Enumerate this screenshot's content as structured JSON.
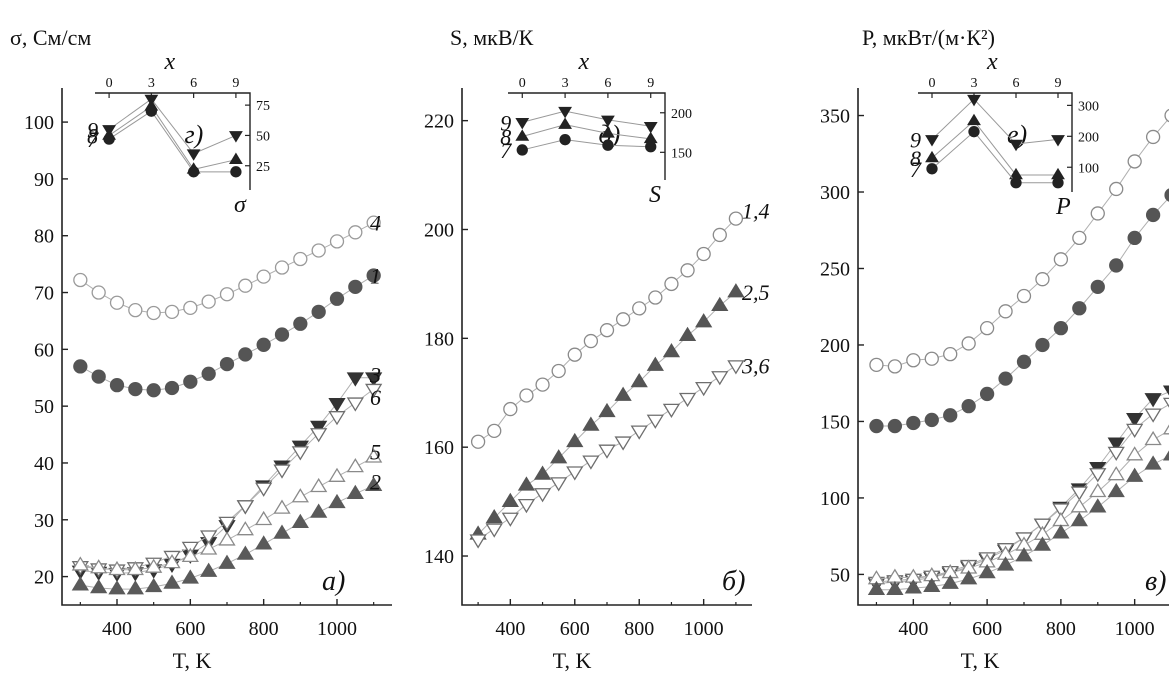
{
  "chart_data": [
    {
      "type": "scatter",
      "panel_label": "а)",
      "ylabel": "σ, См/см",
      "xlabel": "T, K",
      "xlim": [
        250,
        1150
      ],
      "ylim": [
        15,
        106
      ],
      "xticks": [
        400,
        600,
        800,
        1000
      ],
      "yticks": [
        20,
        30,
        40,
        50,
        60,
        70,
        80,
        90,
        100
      ],
      "series": [
        {
          "name": "4",
          "marker": "circle-open",
          "color": "#9a9a9a",
          "x": [
            300,
            350,
            400,
            450,
            500,
            550,
            600,
            650,
            700,
            750,
            800,
            850,
            900,
            950,
            1000,
            1050,
            1100
          ],
          "y": [
            72.2,
            70.0,
            68.2,
            66.9,
            66.4,
            66.6,
            67.3,
            68.4,
            69.7,
            71.2,
            72.8,
            74.4,
            75.9,
            77.4,
            79.0,
            80.6,
            82.3
          ]
        },
        {
          "name": "1",
          "marker": "circle-filled",
          "color": "#555555",
          "x": [
            300,
            350,
            400,
            450,
            500,
            550,
            600,
            650,
            700,
            750,
            800,
            850,
            900,
            950,
            1000,
            1050,
            1100
          ],
          "y": [
            57.0,
            55.2,
            53.7,
            53.0,
            52.8,
            53.2,
            54.3,
            55.7,
            57.4,
            59.1,
            60.8,
            62.6,
            64.5,
            66.6,
            68.9,
            71.0,
            73.0
          ]
        },
        {
          "name": "3",
          "marker": "tri-down-filled",
          "color": "#333333",
          "x": [
            300,
            350,
            400,
            450,
            500,
            550,
            600,
            650,
            700,
            750,
            800,
            850,
            900,
            950,
            1000,
            1050,
            1100
          ],
          "y": [
            21.0,
            20.8,
            20.6,
            20.7,
            21.2,
            22.2,
            23.8,
            26.0,
            29.0,
            32.5,
            36.0,
            39.5,
            43.0,
            46.5,
            50.5,
            55.0,
            55.0
          ]
        },
        {
          "name": "6",
          "marker": "tri-down-open",
          "color": "#6e6e6e",
          "x": [
            300,
            350,
            400,
            450,
            500,
            550,
            600,
            650,
            700,
            750,
            800,
            850,
            900,
            950,
            1000,
            1050,
            1100
          ],
          "y": [
            21.8,
            21.4,
            21.2,
            21.6,
            22.4,
            23.6,
            25.2,
            27.2,
            29.6,
            32.5,
            35.6,
            38.8,
            42.0,
            45.2,
            48.2,
            50.6,
            53.0
          ]
        },
        {
          "name": "5",
          "marker": "tri-up-open",
          "color": "#8a8a8a",
          "x": [
            300,
            350,
            400,
            450,
            500,
            550,
            600,
            650,
            700,
            750,
            800,
            850,
            900,
            950,
            1000,
            1050,
            1100
          ],
          "y": [
            22.0,
            21.5,
            21.2,
            21.2,
            21.6,
            22.4,
            23.5,
            24.8,
            26.4,
            28.2,
            30.0,
            32.0,
            34.0,
            35.8,
            37.6,
            39.3,
            41.0
          ]
        },
        {
          "name": "2",
          "marker": "tri-up-filled",
          "color": "#5a5a5a",
          "x": [
            300,
            350,
            400,
            450,
            500,
            550,
            600,
            650,
            700,
            750,
            800,
            850,
            900,
            950,
            1000,
            1050,
            1100
          ],
          "y": [
            18.5,
            18.0,
            17.8,
            17.8,
            18.2,
            18.8,
            19.7,
            20.9,
            22.3,
            23.9,
            25.7,
            27.6,
            29.5,
            31.3,
            33.0,
            34.6,
            36.0
          ]
        }
      ],
      "inset": {
        "xlabel": "x",
        "ylabel": "σ",
        "panel_label": "г)",
        "xlim": [
          -1,
          10
        ],
        "ylim": [
          5,
          85
        ],
        "xticks": [
          0,
          3,
          6,
          9
        ],
        "yticks": [
          25,
          50,
          75
        ],
        "series": [
          {
            "name": "9",
            "marker": "tri-down-filled",
            "x": [
              0,
              3,
              6,
              9
            ],
            "y": [
              55,
              80,
              35,
              50
            ]
          },
          {
            "name": "8",
            "marker": "tri-up-filled",
            "x": [
              0,
              3,
              6,
              9
            ],
            "y": [
              50,
              74,
              22,
              30
            ]
          },
          {
            "name": "7",
            "marker": "circle-filled",
            "x": [
              0,
              3,
              6,
              9
            ],
            "y": [
              47,
              70,
              20,
              20
            ]
          }
        ]
      }
    },
    {
      "type": "scatter",
      "panel_label": "б)",
      "ylabel": "S, мкВ/К",
      "xlabel": "T, K",
      "xlim": [
        250,
        1150
      ],
      "ylim": [
        131,
        226
      ],
      "xticks": [
        400,
        600,
        800,
        1000
      ],
      "yticks": [
        140,
        160,
        180,
        200,
        220
      ],
      "series": [
        {
          "name": "1,4",
          "marker": "circle-open",
          "color": "#8a8a8a",
          "x": [
            300,
            350,
            400,
            450,
            500,
            550,
            600,
            650,
            700,
            750,
            800,
            850,
            900,
            950,
            1000,
            1050,
            1100
          ],
          "y": [
            161.0,
            163.0,
            167.0,
            169.5,
            171.5,
            174.0,
            177.0,
            179.5,
            181.5,
            183.5,
            185.5,
            187.5,
            190.0,
            192.5,
            195.5,
            199.0,
            202.0
          ]
        },
        {
          "name": "2,5",
          "marker": "tri-up-filled",
          "color": "#555555",
          "x": [
            300,
            350,
            400,
            450,
            500,
            550,
            600,
            650,
            700,
            750,
            800,
            850,
            900,
            950,
            1000,
            1050,
            1100
          ],
          "y": [
            144.0,
            147.0,
            150.0,
            153.0,
            155.0,
            158.0,
            161.0,
            164.0,
            166.5,
            169.5,
            172.0,
            175.0,
            177.5,
            180.5,
            183.0,
            186.0,
            188.5
          ]
        },
        {
          "name": "3,6",
          "marker": "tri-down-open",
          "color": "#6e6e6e",
          "x": [
            300,
            350,
            400,
            450,
            500,
            550,
            600,
            650,
            700,
            750,
            800,
            850,
            900,
            950,
            1000,
            1050,
            1100
          ],
          "y": [
            143.0,
            145.0,
            147.0,
            149.5,
            151.5,
            153.5,
            155.5,
            157.5,
            159.5,
            161.0,
            163.0,
            165.0,
            167.0,
            169.0,
            171.0,
            173.0,
            175.0
          ]
        }
      ],
      "inset": {
        "xlabel": "x",
        "ylabel": "S",
        "panel_label": "д)",
        "xlim": [
          -1,
          10
        ],
        "ylim": [
          115,
          225
        ],
        "xticks": [
          0,
          3,
          6,
          9
        ],
        "yticks": [
          150,
          200
        ],
        "series": [
          {
            "name": "9",
            "marker": "tri-down-filled",
            "x": [
              0,
              3,
              6,
              9
            ],
            "y": [
              188,
              202,
              191,
              183
            ]
          },
          {
            "name": "8",
            "marker": "tri-up-filled",
            "x": [
              0,
              3,
              6,
              9
            ],
            "y": [
              170,
              185,
              174,
              167
            ]
          },
          {
            "name": "7",
            "marker": "circle-filled",
            "x": [
              0,
              3,
              6,
              9
            ],
            "y": [
              153,
              166,
              159,
              157
            ]
          }
        ]
      }
    },
    {
      "type": "scatter",
      "panel_label": "в)",
      "ylabel": "P, мкВт/(м·К²)",
      "xlabel": "T, K",
      "xlim": [
        250,
        1150
      ],
      "ylim": [
        30,
        368
      ],
      "xticks": [
        400,
        600,
        800,
        1000
      ],
      "yticks": [
        50,
        100,
        150,
        200,
        250,
        300,
        350
      ],
      "series": [
        {
          "name": "4",
          "marker": "circle-open",
          "color": "#8a8a8a",
          "x": [
            300,
            350,
            400,
            450,
            500,
            550,
            600,
            650,
            700,
            750,
            800,
            850,
            900,
            950,
            1000,
            1050,
            1100
          ],
          "y": [
            187,
            186,
            190,
            191,
            194,
            201,
            211,
            222,
            232,
            243,
            256,
            270,
            286,
            302,
            320,
            336,
            350
          ]
        },
        {
          "name": "1",
          "marker": "circle-filled",
          "color": "#555555",
          "x": [
            300,
            350,
            400,
            450,
            500,
            550,
            600,
            650,
            700,
            750,
            800,
            850,
            900,
            950,
            1000,
            1050,
            1100
          ],
          "y": [
            147,
            147,
            149,
            151,
            154,
            160,
            168,
            178,
            189,
            200,
            211,
            224,
            238,
            252,
            270,
            285,
            298
          ]
        },
        {
          "name": "3",
          "marker": "tri-down-filled",
          "color": "#333333",
          "x": [
            300,
            350,
            400,
            450,
            500,
            550,
            600,
            650,
            700,
            750,
            800,
            850,
            900,
            950,
            1000,
            1050,
            1100
          ],
          "y": [
            44,
            45,
            46,
            48,
            51,
            55,
            60,
            66,
            74,
            83,
            94,
            106,
            120,
            136,
            152,
            165,
            170
          ]
        },
        {
          "name": "6",
          "marker": "tri-down-open",
          "color": "#6e6e6e",
          "x": [
            300,
            350,
            400,
            450,
            500,
            550,
            600,
            650,
            700,
            750,
            800,
            850,
            900,
            950,
            1000,
            1050,
            1100
          ],
          "y": [
            45,
            46,
            47,
            49,
            52,
            56,
            61,
            67,
            74,
            83,
            93,
            104,
            116,
            130,
            145,
            155,
            162
          ]
        },
        {
          "name": "5",
          "marker": "tri-up-open",
          "color": "#8a8a8a",
          "x": [
            300,
            350,
            400,
            450,
            500,
            550,
            600,
            650,
            700,
            750,
            800,
            850,
            900,
            950,
            1000,
            1050,
            1100
          ],
          "y": [
            47,
            48,
            48,
            49,
            51,
            54,
            58,
            63,
            69,
            76,
            85,
            94,
            104,
            115,
            128,
            138,
            145
          ]
        },
        {
          "name": "2",
          "marker": "tri-up-filled",
          "color": "#5a5a5a",
          "x": [
            300,
            350,
            400,
            450,
            500,
            550,
            600,
            650,
            700,
            750,
            800,
            850,
            900,
            950,
            1000,
            1050,
            1100
          ],
          "y": [
            40,
            40,
            41,
            42,
            44,
            47,
            51,
            56,
            62,
            69,
            77,
            85,
            94,
            104,
            114,
            122,
            128
          ]
        }
      ],
      "inset": {
        "xlabel": "x",
        "ylabel": "P",
        "panel_label": "е)",
        "xlim": [
          -1,
          10
        ],
        "ylim": [
          20,
          340
        ],
        "xticks": [
          0,
          3,
          6,
          9
        ],
        "yticks": [
          100,
          200,
          300
        ],
        "series": [
          {
            "name": "9",
            "marker": "tri-down-filled",
            "x": [
              0,
              3,
              6,
              9
            ],
            "y": [
              190,
              320,
              175,
              190
            ]
          },
          {
            "name": "8",
            "marker": "tri-up-filled",
            "x": [
              0,
              3,
              6,
              9
            ],
            "y": [
              130,
              250,
              75,
              75
            ]
          },
          {
            "name": "7",
            "marker": "circle-filled",
            "x": [
              0,
              3,
              6,
              9
            ],
            "y": [
              95,
              215,
              50,
              50
            ]
          }
        ]
      }
    }
  ]
}
